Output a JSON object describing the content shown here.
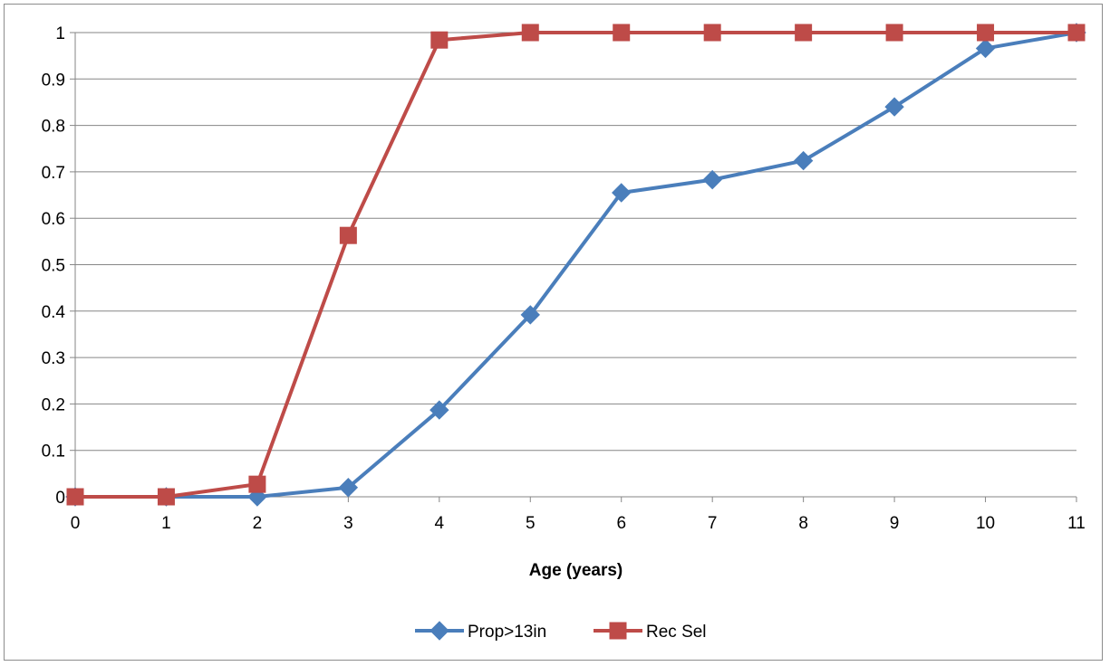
{
  "chart_data": {
    "type": "line",
    "title": "",
    "xlabel": "Age (years)",
    "ylabel": "",
    "x": [
      0,
      1,
      2,
      3,
      4,
      5,
      6,
      7,
      8,
      9,
      10,
      11
    ],
    "xlim": [
      0,
      11
    ],
    "ylim": [
      0,
      1
    ],
    "x_ticks": [
      "0",
      "1",
      "2",
      "3",
      "4",
      "5",
      "6",
      "7",
      "8",
      "9",
      "10",
      "11"
    ],
    "y_ticks": [
      "0",
      "0.1",
      "0.2",
      "0.3",
      "0.4",
      "0.5",
      "0.6",
      "0.7",
      "0.8",
      "0.9",
      "1"
    ],
    "grid": "horizontal",
    "legend_position": "bottom",
    "series": [
      {
        "name": "Prop>13in",
        "color": "#4a7ebb",
        "marker": "diamond",
        "values": [
          0,
          0,
          0,
          0.02,
          0.187,
          0.392,
          0.655,
          0.683,
          0.724,
          0.84,
          0.966,
          1.0
        ]
      },
      {
        "name": "Rec Sel",
        "color": "#be4b48",
        "marker": "square",
        "values": [
          0,
          0,
          0.027,
          0.563,
          0.984,
          1.0,
          1.0,
          1.0,
          1.0,
          1.0,
          1.0,
          1.0
        ]
      }
    ]
  }
}
